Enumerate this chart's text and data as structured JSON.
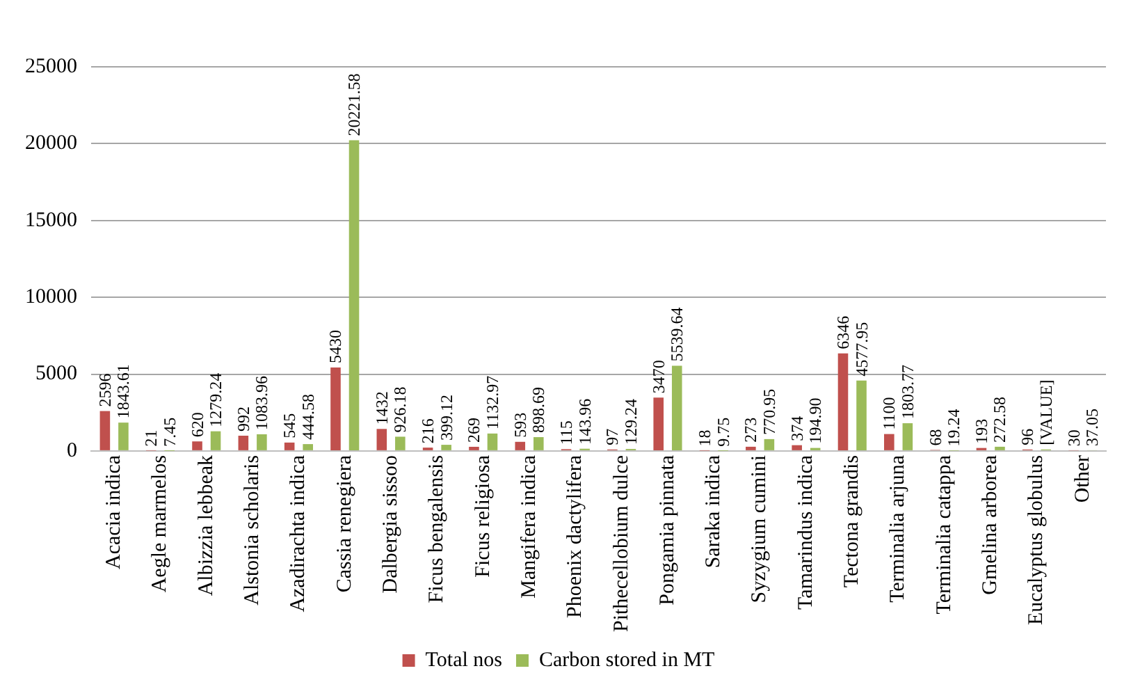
{
  "chart_data": {
    "type": "bar",
    "categories": [
      "Acacia indica",
      "Aegle marmelos",
      "Albizzia lebbeak",
      "Alstonia scholaris",
      "Azadirachta indica",
      "Cassia renegiera",
      "Dalbergia sissoo",
      "Ficus bengalensis",
      "Ficus religiosa",
      "Mangifera indica",
      "Phoenix dactylifera",
      "Pithecellobium dulce",
      "Pongamia pinnata",
      "Saraka indica",
      "Syzygium cumini",
      "Tamarindus indica",
      "Tectona grandis",
      "Terminalia arjuna",
      "Terminalia catappa",
      "Gmelina arborea",
      "Eucalyptus globulus",
      "Other"
    ],
    "series": [
      {
        "name": "Total nos",
        "color": "#c0504d",
        "values": [
          2596,
          21,
          620,
          992,
          545,
          5430,
          1432,
          216,
          269,
          593,
          115,
          97,
          3470,
          18,
          273,
          374,
          6346,
          1100,
          68,
          193,
          96,
          30
        ],
        "value_labels": [
          "2596",
          "21",
          "620",
          "992",
          "545",
          "5430",
          "1432",
          "216",
          "269",
          "593",
          "115",
          "97",
          "3470",
          "18",
          "273",
          "374",
          "6346",
          "1100",
          "68",
          "193",
          "96",
          "30"
        ]
      },
      {
        "name": "Carbon stored in MT",
        "color": "#9bbb59",
        "values": [
          1843.61,
          7.45,
          1279.24,
          1083.96,
          444.58,
          20221.58,
          926.18,
          399.12,
          1132.97,
          898.69,
          143.96,
          129.24,
          5539.64,
          9.75,
          770.95,
          194.9,
          4577.95,
          1803.77,
          19.24,
          272.58,
          100,
          37.05
        ],
        "value_labels": [
          "1843.61",
          "7.45",
          "1279.24",
          "1083.96",
          "444.58",
          "20221.58",
          "926.18",
          "399.12",
          "1132.97",
          "898.69",
          "143.96",
          "129.24",
          "5539.64",
          "9.75",
          "770.95",
          "194.90",
          "4577.95",
          "1803.77",
          "19.24",
          "272.58",
          "[VALUE]",
          "37.05"
        ]
      }
    ],
    "ylim": [
      0,
      25000
    ],
    "yticks": [
      0,
      5000,
      10000,
      15000,
      20000,
      25000
    ],
    "grid": "y",
    "legend": "bottom"
  }
}
